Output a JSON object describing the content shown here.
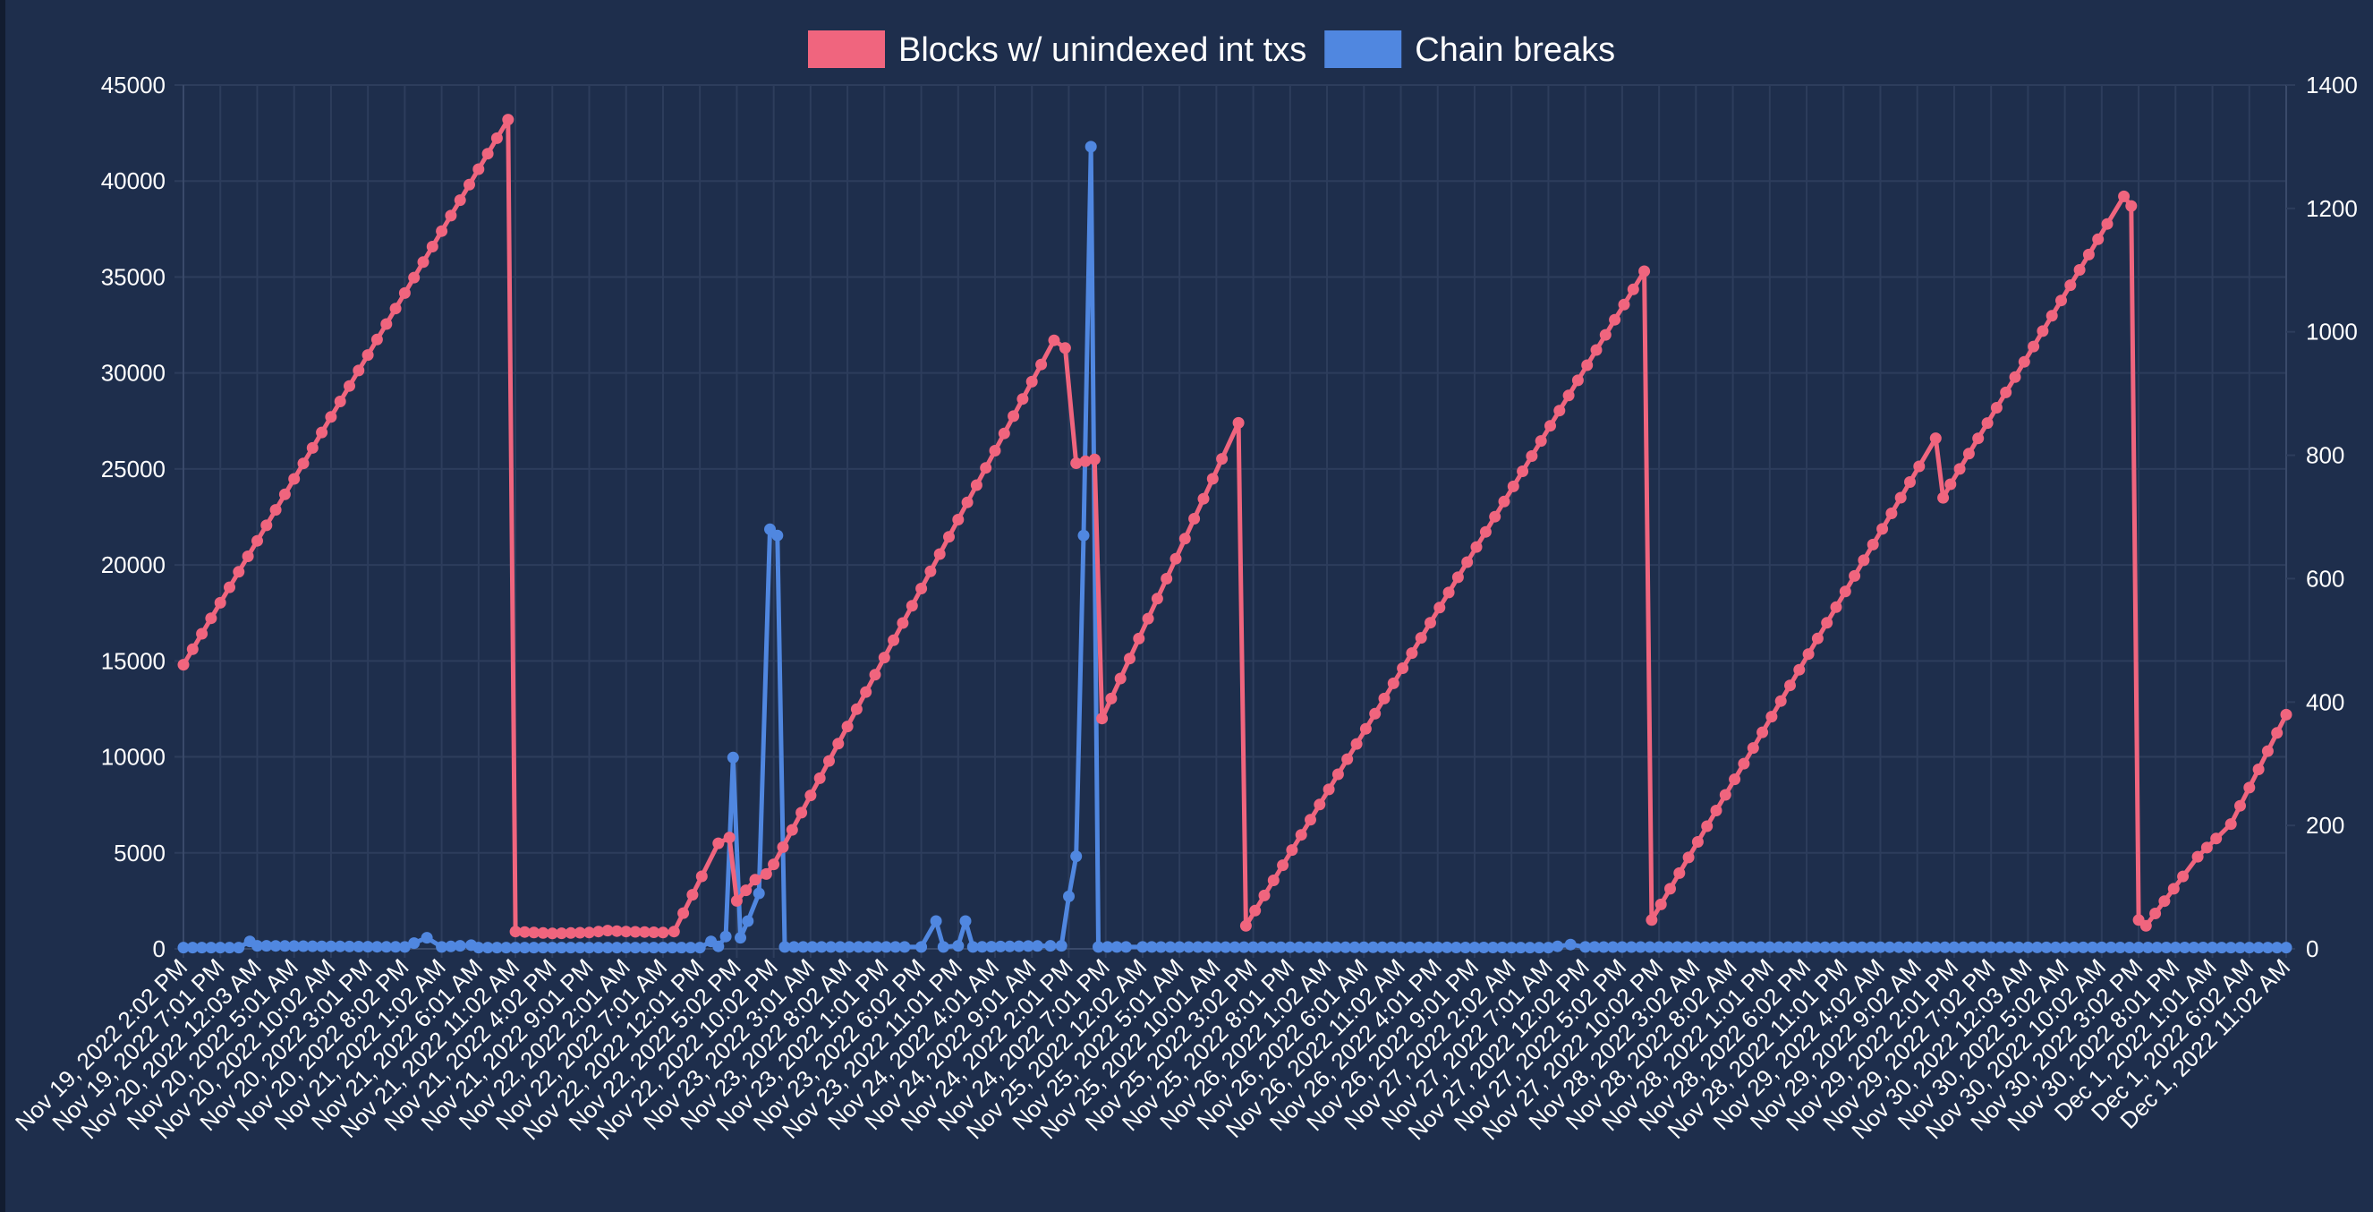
{
  "chart_data": {
    "type": "line",
    "title": "",
    "xlabel": "",
    "ylabel": "",
    "legend_position": "top-center",
    "grid": true,
    "y_left": {
      "min": 0,
      "max": 45000,
      "ticks": [
        "0",
        "5000",
        "10000",
        "15000",
        "20000",
        "25000",
        "30000",
        "35000",
        "40000",
        "45000"
      ]
    },
    "y_right": {
      "min": 0,
      "max": 1400,
      "ticks": [
        "0",
        "200",
        "400",
        "600",
        "800",
        "1000",
        "1200",
        "1400"
      ]
    },
    "x_tick_labels": [
      "Nov 19, 2022 2:02 PM",
      "Nov 19, 2022 7:01 PM",
      "Nov 20, 2022 12:03 AM",
      "Nov 20, 2022 5:01 AM",
      "Nov 20, 2022 10:02 AM",
      "Nov 20, 2022 3:01 PM",
      "Nov 20, 2022 8:02 PM",
      "Nov 21, 2022 1:02 AM",
      "Nov 21, 2022 6:01 AM",
      "Nov 21, 2022 11:02 AM",
      "Nov 21, 2022 4:02 PM",
      "Nov 21, 2022 9:01 PM",
      "Nov 22, 2022 2:01 AM",
      "Nov 22, 2022 7:01 AM",
      "Nov 22, 2022 12:01 PM",
      "Nov 22, 2022 5:02 PM",
      "Nov 22, 2022 10:02 PM",
      "Nov 23, 2022 3:01 AM",
      "Nov 23, 2022 8:02 AM",
      "Nov 23, 2022 1:01 PM",
      "Nov 23, 2022 6:02 PM",
      "Nov 23, 2022 11:01 PM",
      "Nov 24, 2022 4:01 AM",
      "Nov 24, 2022 9:01 AM",
      "Nov 24, 2022 2:01 PM",
      "Nov 24, 2022 7:01 PM",
      "Nov 25, 2022 12:02 AM",
      "Nov 25, 2022 5:01 AM",
      "Nov 25, 2022 10:01 AM",
      "Nov 25, 2022 3:02 PM",
      "Nov 25, 2022 8:01 PM",
      "Nov 26, 2022 1:02 AM",
      "Nov 26, 2022 6:01 AM",
      "Nov 26, 2022 11:02 AM",
      "Nov 26, 2022 4:01 PM",
      "Nov 26, 2022 9:01 PM",
      "Nov 27, 2022 2:02 AM",
      "Nov 27, 2022 7:01 AM",
      "Nov 27, 2022 12:02 PM",
      "Nov 27, 2022 5:02 PM",
      "Nov 27, 2022 10:02 PM",
      "Nov 28, 2022 3:02 AM",
      "Nov 28, 2022 8:02 AM",
      "Nov 28, 2022 1:01 PM",
      "Nov 28, 2022 6:02 PM",
      "Nov 28, 2022 11:01 PM",
      "Nov 29, 2022 4:02 AM",
      "Nov 29, 2022 9:02 AM",
      "Nov 29, 2022 2:01 PM",
      "Nov 29, 2022 7:02 PM",
      "Nov 30, 2022 12:03 AM",
      "Nov 30, 2022 5:02 AM",
      "Nov 30, 2022 10:02 AM",
      "Nov 30, 2022 3:02 PM",
      "Nov 30, 2022 8:01 PM",
      "Dec 1, 2022 1:01 AM",
      "Dec 1, 2022 6:02 AM",
      "Dec 1, 2022 11:02 AM"
    ],
    "series": [
      {
        "name": "Blocks w/ unindexed int txs",
        "axis": "left",
        "color": "#f0657e",
        "points": [
          [
            0,
            14800
          ],
          [
            8.8,
            43200
          ],
          [
            9,
            900
          ],
          [
            10,
            800
          ],
          [
            11,
            850
          ],
          [
            11.5,
            950
          ],
          [
            12,
            900
          ],
          [
            13,
            850
          ],
          [
            13.3,
            900
          ],
          [
            14.5,
            5500
          ],
          [
            14.8,
            5800
          ],
          [
            15,
            2500
          ],
          [
            15.5,
            3600
          ],
          [
            15.8,
            3900
          ],
          [
            16,
            4400
          ],
          [
            23.6,
            31700
          ],
          [
            23.9,
            31300
          ],
          [
            24.2,
            25300
          ],
          [
            24.7,
            25500
          ],
          [
            24.9,
            12000
          ],
          [
            28.6,
            27400
          ],
          [
            28.8,
            1200
          ],
          [
            39.6,
            35300
          ],
          [
            39.8,
            1500
          ],
          [
            47.5,
            26600
          ],
          [
            47.7,
            23500
          ],
          [
            47.9,
            24200
          ],
          [
            52.6,
            39200
          ],
          [
            52.8,
            38700
          ],
          [
            53,
            1500
          ],
          [
            53.2,
            1200
          ],
          [
            54.6,
            4800
          ],
          [
            55.5,
            6500
          ],
          [
            57,
            12200
          ]
        ]
      },
      {
        "name": "Chain breaks",
        "axis": "right",
        "color": "#5087e0",
        "points": [
          [
            0,
            2
          ],
          [
            1.5,
            2
          ],
          [
            1.8,
            12
          ],
          [
            2,
            5
          ],
          [
            6,
            3
          ],
          [
            6.6,
            18
          ],
          [
            7,
            3
          ],
          [
            7.8,
            6
          ],
          [
            8,
            2
          ],
          [
            14,
            2
          ],
          [
            14.3,
            12
          ],
          [
            14.5,
            4
          ],
          [
            14.7,
            20
          ],
          [
            14.9,
            310
          ],
          [
            15.1,
            18
          ],
          [
            15.3,
            45
          ],
          [
            15.6,
            90
          ],
          [
            15.9,
            680
          ],
          [
            16.1,
            670
          ],
          [
            16.3,
            3
          ],
          [
            20,
            3
          ],
          [
            20.4,
            45
          ],
          [
            20.6,
            3
          ],
          [
            21,
            5
          ],
          [
            21.2,
            45
          ],
          [
            21.4,
            3
          ],
          [
            23.5,
            5
          ],
          [
            23.8,
            5
          ],
          [
            24,
            85
          ],
          [
            24.2,
            150
          ],
          [
            24.4,
            670
          ],
          [
            24.6,
            1300
          ],
          [
            24.8,
            3
          ],
          [
            26,
            3
          ],
          [
            37,
            2
          ],
          [
            37.6,
            7
          ],
          [
            38,
            3
          ],
          [
            57,
            2
          ]
        ]
      }
    ]
  }
}
